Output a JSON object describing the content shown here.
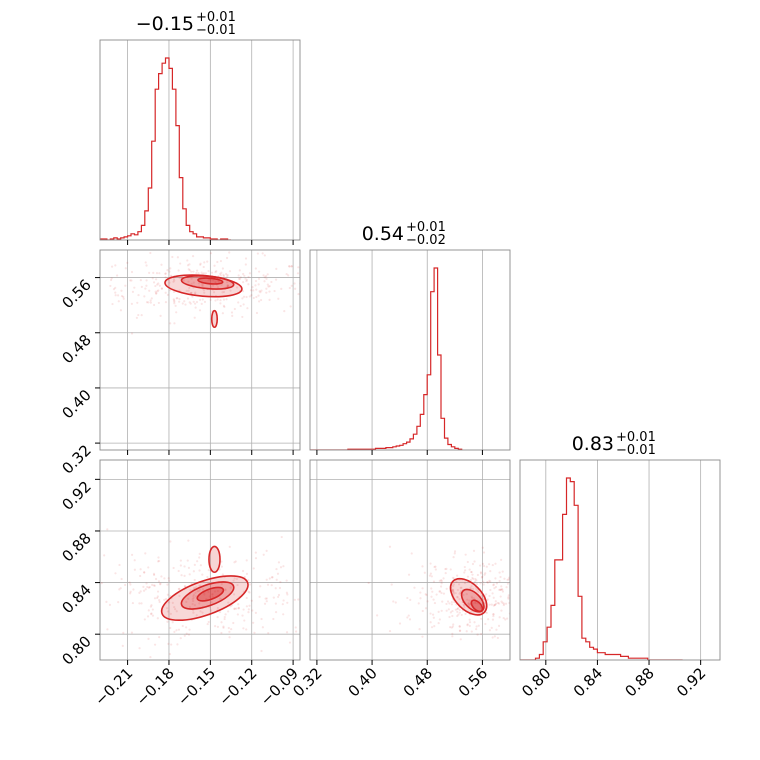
{
  "chart_data": {
    "type": "corner",
    "color": "#d62728",
    "params": [
      {
        "median": "−0.15",
        "plus": "+0.01",
        "minus": "−0.01",
        "range": [
          -0.23,
          -0.085
        ],
        "ticks": [
          -0.21,
          -0.18,
          -0.15,
          -0.12,
          -0.09
        ],
        "tick_labels": [
          "−0.21",
          "−0.18",
          "−0.15",
          "−0.12",
          "−0.09"
        ]
      },
      {
        "median": "0.54",
        "plus": "+0.01",
        "minus": "−0.02",
        "range": [
          0.31,
          0.6
        ],
        "ticks": [
          0.32,
          0.4,
          0.48,
          0.56
        ],
        "tick_labels": [
          "0.32",
          "0.40",
          "0.48",
          "0.56"
        ]
      },
      {
        "median": "0.83",
        "plus": "+0.01",
        "minus": "−0.01",
        "range": [
          0.78,
          0.935
        ],
        "ticks": [
          0.8,
          0.84,
          0.88,
          0.92
        ],
        "tick_labels": [
          "0.80",
          "0.84",
          "0.88",
          "0.92"
        ]
      }
    ],
    "histograms": [
      {
        "edges_from": -0.23,
        "bin": 0.0025,
        "counts": [
          1,
          1,
          0,
          1,
          2,
          1,
          2,
          3,
          4,
          6,
          5,
          8,
          14,
          28,
          50,
          95,
          145,
          160,
          170,
          175,
          165,
          145,
          110,
          60,
          30,
          14,
          8,
          6,
          3,
          3,
          2,
          2,
          1,
          1,
          0,
          1,
          1,
          0
        ]
      },
      {
        "edges_from": 0.31,
        "bin": 0.005,
        "counts": [
          0,
          0,
          0,
          0,
          0,
          0,
          0,
          0,
          0,
          0,
          0,
          1,
          1,
          1,
          1,
          1,
          1,
          1,
          1,
          2,
          2,
          2,
          3,
          3,
          4,
          5,
          6,
          8,
          10,
          14,
          20,
          30,
          45,
          70,
          95,
          200,
          230,
          120,
          40,
          15,
          7,
          4,
          2,
          1
        ]
      },
      {
        "edges_from": 0.78,
        "bin": 0.003,
        "counts": [
          0,
          0,
          0,
          0,
          1,
          3,
          10,
          18,
          30,
          55,
          55,
          80,
          100,
          98,
          85,
          35,
          12,
          10,
          7,
          6,
          4,
          4,
          3,
          3,
          3,
          3,
          2,
          2,
          1,
          1,
          1,
          1,
          1,
          0,
          0,
          0,
          0,
          0,
          0,
          0,
          0,
          0
        ]
      }
    ],
    "contours": [
      {
        "x": 0,
        "y": 1,
        "blobs": [
          {
            "cx": -0.155,
            "cy": 0.548,
            "rx": 0.028,
            "ry": 0.015,
            "rot": -5
          },
          {
            "cx": -0.152,
            "cy": 0.553,
            "rx": 0.019,
            "ry": 0.009,
            "rot": -5
          },
          {
            "cx": -0.15,
            "cy": 0.555,
            "rx": 0.009,
            "ry": 0.004,
            "rot": -5
          },
          {
            "cx": -0.147,
            "cy": 0.5,
            "rx": 0.002,
            "ry": 0.012,
            "rot": 0
          }
        ]
      },
      {
        "x": 0,
        "y": 2,
        "blobs": [
          {
            "cx": -0.154,
            "cy": 0.828,
            "rx": 0.033,
            "ry": 0.013,
            "rot": 20
          },
          {
            "cx": -0.152,
            "cy": 0.83,
            "rx": 0.02,
            "ry": 0.008,
            "rot": 20
          },
          {
            "cx": -0.15,
            "cy": 0.831,
            "rx": 0.01,
            "ry": 0.004,
            "rot": 20
          },
          {
            "cx": -0.147,
            "cy": 0.858,
            "rx": 0.004,
            "ry": 0.01,
            "rot": 0
          }
        ]
      },
      {
        "x": 1,
        "y": 2,
        "blobs": [
          {
            "cx": 0.54,
            "cy": 0.829,
            "rx": 0.032,
            "ry": 0.01,
            "rot": -45
          },
          {
            "cx": 0.546,
            "cy": 0.826,
            "rx": 0.02,
            "ry": 0.006,
            "rot": -45
          },
          {
            "cx": 0.552,
            "cy": 0.822,
            "rx": 0.01,
            "ry": 0.003,
            "rot": -45
          }
        ]
      }
    ],
    "grid": true,
    "legend": "none"
  }
}
